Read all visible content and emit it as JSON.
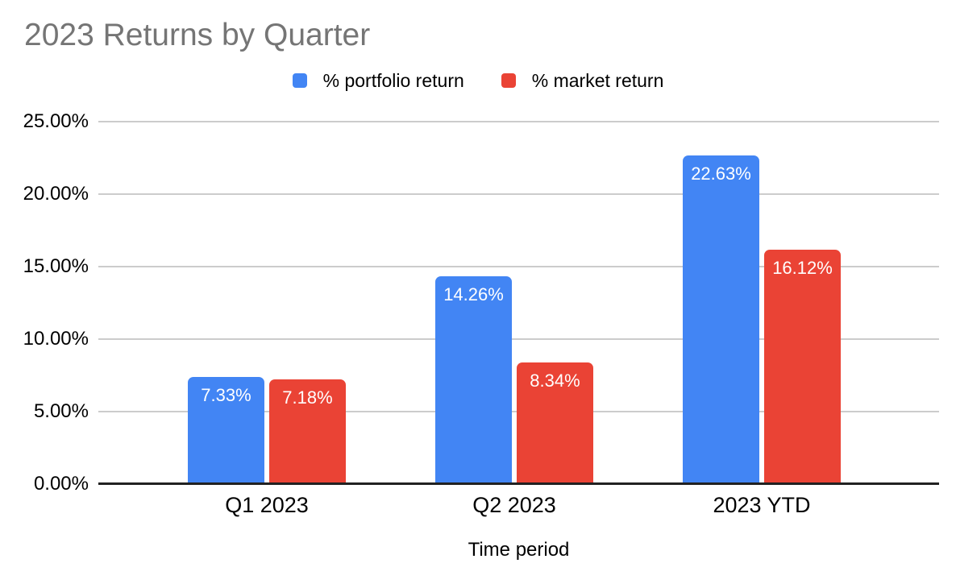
{
  "chart_data": {
    "type": "bar",
    "title": "2023 Returns by Quarter",
    "title_color": "#757575",
    "categories": [
      "Q1 2023",
      "Q2 2023",
      "2023 YTD"
    ],
    "series": [
      {
        "name": "% portfolio return",
        "color": "#4285F4",
        "values": [
          7.33,
          14.26,
          22.63
        ],
        "value_labels": [
          "7.33%",
          "14.26%",
          "22.63%"
        ]
      },
      {
        "name": "% market return",
        "color": "#EA4335",
        "values": [
          7.18,
          8.34,
          16.12
        ],
        "value_labels": [
          "7.18%",
          "8.34%",
          "16.12%"
        ]
      }
    ],
    "xlabel": "Time period",
    "ylabel": "",
    "ylim": [
      0,
      25
    ],
    "yticks": [
      0,
      5,
      10,
      15,
      20,
      25
    ],
    "ytick_labels": [
      "0.00%",
      "5.00%",
      "10.00%",
      "15.00%",
      "20.00%",
      "25.00%"
    ],
    "grid": true,
    "legend_position": "top",
    "colors": {
      "gridline": "#cccccc",
      "axis_line": "#212121",
      "tick_label": "#000000",
      "bar_label": "#ffffff",
      "background": "#ffffff"
    }
  }
}
